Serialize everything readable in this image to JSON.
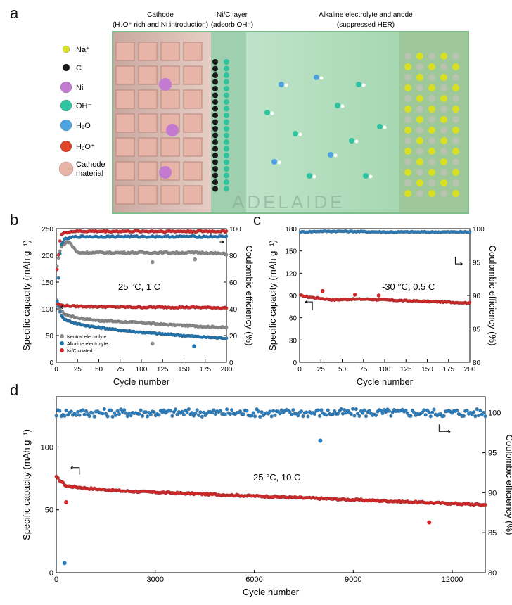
{
  "panel_letters": {
    "a": "a",
    "b": "b",
    "c": "c",
    "d": "d"
  },
  "schematic": {
    "header_cathode": "Cathode",
    "header_cathode_sub": "(H₃O⁺ rich and Ni introduction)",
    "header_layer": "Ni/C layer",
    "header_layer_sub": "(adsorb OH⁻)",
    "header_electrolyte": "Alkaline electrolyte and anode",
    "header_electrolyte_sub": "(suppressed HER)",
    "legend": [
      {
        "label": "Na⁺",
        "color": "#d9e021"
      },
      {
        "label": "C",
        "color": "#1a1a1a"
      },
      {
        "label": "Ni",
        "color": "#c27bd0"
      },
      {
        "label": "OH⁻",
        "color": "#2ec4a0"
      },
      {
        "label": "H₂O",
        "color": "#4da3e0"
      },
      {
        "label": "H₃O⁺",
        "color": "#e0452b"
      },
      {
        "label": "Cathode material",
        "color": "#e8b4a8"
      }
    ],
    "watermark": "ADELAIDE"
  },
  "colors": {
    "neutral": "#8c8c8c",
    "alkaline": "#1f77b4",
    "nic": "#d62728",
    "ce_blue": "#2a7fc0"
  },
  "chart_data": [
    {
      "id": "b",
      "type": "scatter",
      "annotation": "25 °C, 1 C",
      "xlabel": "Cycle number",
      "ylabel": "Specific capacity (mAh g⁻¹)",
      "y2label": "Coulombic efficiency (%)",
      "xlim": [
        0,
        200
      ],
      "ylim": [
        0,
        250
      ],
      "y2lim": [
        0,
        100
      ],
      "xticks": [
        "0",
        "25",
        "50",
        "75",
        "100",
        "125",
        "150",
        "175",
        "200"
      ],
      "yticks": [
        "0",
        "50",
        "100",
        "150",
        "200",
        "250"
      ],
      "y2ticks": [
        "0",
        "20",
        "40",
        "60",
        "80",
        "100"
      ],
      "legend": [
        "Neutral electrolyte",
        "Alkaline electrolyte",
        "Ni/C coated"
      ],
      "legend_position": "bottom-left",
      "series": [
        {
          "name": "Neutral electrolyte",
          "kind": "capacity",
          "x": [
            1,
            5,
            10,
            20,
            30,
            50,
            75,
            100,
            115,
            125,
            150,
            175,
            200
          ],
          "y": [
            115,
            97,
            90,
            85,
            82,
            78,
            76,
            74,
            72,
            71,
            69,
            67,
            65
          ],
          "outliers": [
            [
              113,
              35
            ]
          ]
        },
        {
          "name": "Alkaline electrolyte",
          "kind": "capacity",
          "x": [
            1,
            5,
            10,
            20,
            30,
            50,
            75,
            100,
            125,
            150,
            175,
            200
          ],
          "y": [
            113,
            90,
            80,
            74,
            70,
            65,
            60,
            56,
            53,
            50,
            47,
            45
          ],
          "outliers": [
            [
              162,
              30
            ]
          ]
        },
        {
          "name": "Ni/C coated",
          "kind": "capacity",
          "x": [
            1,
            5,
            10,
            20,
            50,
            100,
            150,
            200
          ],
          "y": [
            110,
            107,
            106,
            105,
            104,
            103,
            103,
            102
          ]
        },
        {
          "name": "Neutral electrolyte",
          "kind": "ce",
          "x": [
            1,
            5,
            10,
            15,
            25,
            50,
            75,
            100,
            125,
            150,
            175,
            200
          ],
          "y": [
            72,
            86,
            89,
            90,
            82,
            82,
            82,
            82,
            82,
            82,
            82,
            81
          ],
          "outliers": [
            [
              113,
              75
            ],
            [
              163,
              77
            ]
          ]
        },
        {
          "name": "Alkaline electrolyte",
          "kind": "ce",
          "x": [
            1,
            5,
            10,
            15,
            25,
            50,
            100,
            150,
            200
          ],
          "y": [
            45,
            88,
            92,
            93,
            94,
            94,
            94,
            94,
            94
          ]
        },
        {
          "name": "Ni/C coated",
          "kind": "ce",
          "x": [
            1,
            5,
            10,
            20,
            50,
            100,
            150,
            200
          ],
          "y": [
            70,
            95,
            97,
            98,
            98,
            98,
            98,
            98
          ]
        }
      ]
    },
    {
      "id": "c",
      "type": "scatter",
      "annotation": "-30 °C, 0.5 C",
      "xlabel": "Cycle number",
      "ylabel": "Specific capacity (mAh g⁻¹)",
      "y2label": "Coulombic efficiency (%)",
      "xlim": [
        0,
        200
      ],
      "ylim": [
        0,
        180
      ],
      "y2lim": [
        80,
        100
      ],
      "xticks": [
        "0",
        "25",
        "50",
        "75",
        "100",
        "125",
        "150",
        "175",
        "200"
      ],
      "yticks": [
        "0",
        "30",
        "60",
        "90",
        "120",
        "150",
        "180"
      ],
      "y2ticks": [
        "80",
        "85",
        "90",
        "95",
        "100"
      ],
      "series": [
        {
          "name": "Ni/C coated",
          "kind": "capacity",
          "x": [
            1,
            10,
            25,
            40,
            60,
            80,
            100,
            125,
            150,
            175,
            200
          ],
          "y": [
            90,
            88,
            86,
            84,
            85,
            85,
            84,
            83,
            82,
            81,
            80
          ],
          "outliers": [
            [
              27,
              96
            ],
            [
              65,
              91
            ],
            [
              93,
              90
            ]
          ]
        },
        {
          "name": "Ni/C coated",
          "kind": "ce",
          "x": [
            1,
            25,
            50,
            100,
            150,
            200
          ],
          "y": [
            99.5,
            99.6,
            99.6,
            99.5,
            99.5,
            99.5
          ]
        }
      ]
    },
    {
      "id": "d",
      "type": "scatter",
      "annotation": "25 °C, 10 C",
      "xlabel": "Cycle number",
      "ylabel": "Specific capacity (mAh g⁻¹)",
      "y2label": "Coulombic efficiency (%)",
      "xlim": [
        0,
        13000
      ],
      "ylim": [
        0,
        140
      ],
      "y2lim": [
        80,
        102
      ],
      "xticks": [
        "0",
        "3000",
        "6000",
        "9000",
        "12000"
      ],
      "yticks": [
        "0",
        "50",
        "100"
      ],
      "y2ticks": [
        "80",
        "85",
        "90",
        "95",
        "100"
      ],
      "series": [
        {
          "name": "Ni/C coated",
          "kind": "capacity",
          "x": [
            1,
            300,
            1000,
            2000,
            3000,
            5000,
            7000,
            9000,
            11000,
            13000
          ],
          "y": [
            76,
            69,
            67,
            65,
            64,
            62,
            60,
            58,
            56,
            54
          ],
          "outliers": [
            [
              300,
              56
            ],
            [
              11300,
              40
            ]
          ]
        },
        {
          "name": "Ni/C coated",
          "kind": "ce",
          "x": [
            1,
            2000,
            4000,
            6000,
            8000,
            10000,
            12000,
            13000
          ],
          "y": [
            100,
            100,
            100,
            100,
            100,
            100,
            100,
            100
          ],
          "outliers": [
            [
              250,
              81.2
            ],
            [
              8000,
              96.5
            ]
          ]
        }
      ]
    }
  ]
}
